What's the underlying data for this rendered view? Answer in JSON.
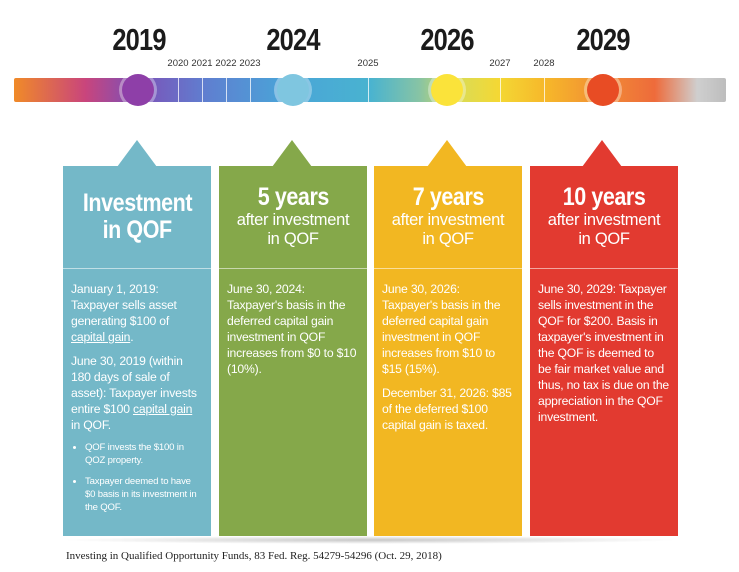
{
  "colors": {
    "col1": "#74b8c8",
    "col2": "#85a84a",
    "col3": "#f2b722",
    "col4": "#e23a30",
    "dot1": "#8e3fa8",
    "dot2": "#7fc6e0",
    "dot3": "#fbe33a",
    "dot4": "#e84c24"
  },
  "timeline": {
    "major_years": [
      "2019",
      "2024",
      "2026",
      "2029"
    ],
    "minor_years": [
      "2020",
      "2021",
      "2022",
      "2023",
      "2025",
      "2027",
      "2028"
    ]
  },
  "columns": [
    {
      "title": "Investment",
      "title2": "in QOF",
      "sub1": "",
      "sub2": "",
      "paragraphs": [
        [
          "January 1, 2019: Taxpayer sells asset generating $100 of ",
          "capital gain",
          "."
        ],
        [
          "June 30, 2019 (within 180 days of sale of asset): Taxpayer invests entire $100 ",
          "capital gain",
          " in QOF."
        ]
      ],
      "bullets": [
        "QOF invests the $100 in QOZ property.",
        "Taxpayer deemed to have $0 basis in its investment in the QOF."
      ]
    },
    {
      "title": "5 years",
      "sub1": "after investment",
      "sub2": "in QOF",
      "paragraphs": [
        "June 30, 2024: Taxpayer's basis in the deferred capital gain investment in QOF increases from $0 to $10 (10%)."
      ]
    },
    {
      "title": "7 years",
      "sub1": "after investment",
      "sub2": "in QOF",
      "paragraphs": [
        "June 30, 2026: Taxpayer's basis in the deferred capital gain investment in QOF increases from $10 to $15 (15%).",
        "December 31, 2026: $85 of the deferred $100 capital gain is taxed."
      ]
    },
    {
      "title": "10 years",
      "sub1": "after investment",
      "sub2": "in QOF",
      "paragraphs": [
        "June 30, 2029: Taxpayer sells investment in the QOF for $200. Basis in taxpayer's investment in the QOF is deemed to be fair market value and thus, no tax is due on the appreciation in the QOF investment."
      ]
    }
  ],
  "citation": "Investing in Qualified Opportunity Funds, 83 Fed. Reg. 54279-54296 (Oct. 29, 2018)"
}
